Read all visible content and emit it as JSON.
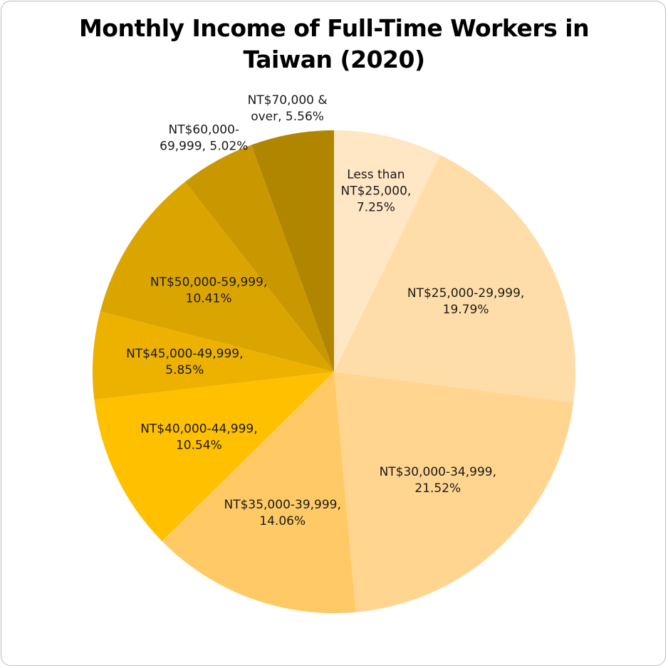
{
  "chart_data": {
    "type": "pie",
    "title_lines": [
      "Monthly Income of Full-Time Workers in",
      "Taiwan (2020)"
    ],
    "start_angle_deg": 0,
    "direction": "clockwise",
    "slices": [
      {
        "label": "Less than NT$25,000",
        "value": 7.25,
        "display": [
          "Less than",
          "NT$25,000,",
          "7.25%"
        ],
        "color": "#FFE6C4"
      },
      {
        "label": "NT$25,000-29,999",
        "value": 19.79,
        "display": [
          "NT$25,000-29,999,",
          "19.79%"
        ],
        "color": "#FFDDA8"
      },
      {
        "label": "NT$30,000-34,999",
        "value": 21.52,
        "display": [
          "NT$30,000-34,999,",
          "21.52%"
        ],
        "color": "#FFD590"
      },
      {
        "label": "NT$35,000-39,999",
        "value": 14.06,
        "display": [
          "NT$35,000-39,999,",
          "14.06%"
        ],
        "color": "#FFCA66"
      },
      {
        "label": "NT$40,000-44,999",
        "value": 10.54,
        "display": [
          "NT$40,000-44,999,",
          "10.54%"
        ],
        "color": "#FFC000"
      },
      {
        "label": "NT$45,000-49,999",
        "value": 5.85,
        "display": [
          "NT$45,000-49,999,",
          "5.85%"
        ],
        "color": "#EDB100"
      },
      {
        "label": "NT$50,000-59,999",
        "value": 10.41,
        "display": [
          "NT$50,000-59,999,",
          "10.41%"
        ],
        "color": "#DBA500"
      },
      {
        "label": "NT$60,000-69,999",
        "value": 5.02,
        "display": [
          "NT$60,000-",
          "69,999, 5.02%"
        ],
        "color": "#C99700"
      },
      {
        "label": "NT$70,000 & over",
        "value": 5.56,
        "display": [
          "NT$70,000 &",
          "over, 5.56%"
        ],
        "color": "#B08500"
      }
    ]
  }
}
